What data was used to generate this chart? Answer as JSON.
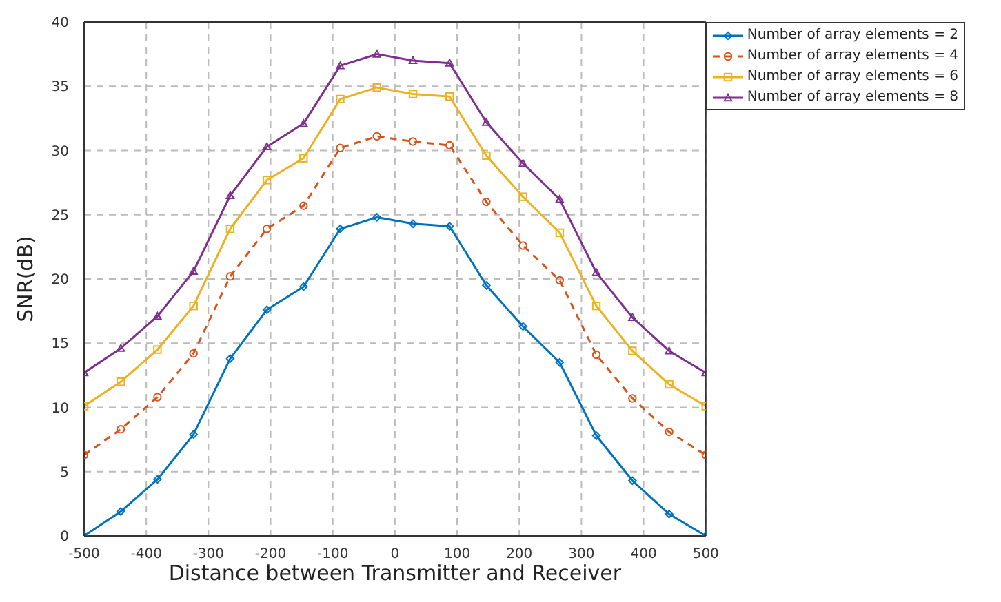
{
  "chart_data": {
    "type": "line",
    "xlabel": "Distance between Transmitter and Receiver",
    "ylabel": "SNR(dB)",
    "x": [
      -500,
      -441,
      -382,
      -324,
      -265,
      -206,
      -147,
      -88,
      -29,
      29,
      88,
      147,
      206,
      265,
      324,
      382,
      441,
      500
    ],
    "xlim": [
      -500,
      500
    ],
    "xticks": [
      -500,
      -400,
      -300,
      -200,
      -100,
      0,
      100,
      200,
      300,
      400,
      500
    ],
    "ylim": [
      0,
      40
    ],
    "yticks": [
      0,
      5,
      10,
      15,
      20,
      25,
      30,
      35,
      40
    ],
    "grid": true,
    "legend": "top right",
    "series": [
      {
        "name": "Number of array elements = 2",
        "color": "#0072bd",
        "marker": "diamond",
        "line_style": "solid",
        "values": [
          0,
          1.9,
          4.4,
          7.9,
          13.8,
          17.6,
          19.4,
          23.9,
          24.8,
          24.3,
          24.1,
          19.5,
          16.3,
          13.5,
          7.8,
          4.3,
          1.7,
          0
        ]
      },
      {
        "name": "Number of array elements = 4",
        "color": "#d95319",
        "marker": "circle",
        "line_style": "dashed",
        "values": [
          6.3,
          8.3,
          10.8,
          14.2,
          20.2,
          23.9,
          25.7,
          30.2,
          31.1,
          30.7,
          30.4,
          26.0,
          22.6,
          19.9,
          14.1,
          10.7,
          8.1,
          6.3
        ]
      },
      {
        "name": "Number of array elements = 6",
        "color": "#edb120",
        "marker": "square",
        "line_style": "solid",
        "values": [
          10.1,
          12.0,
          14.5,
          17.9,
          23.9,
          27.7,
          29.4,
          34.0,
          34.9,
          34.4,
          34.2,
          29.6,
          26.4,
          23.6,
          17.9,
          14.4,
          11.8,
          10.1
        ]
      },
      {
        "name": "Number of array elements = 8",
        "color": "#7e2f8e",
        "marker": "triangle",
        "line_style": "solid",
        "values": [
          12.7,
          14.6,
          17.1,
          20.6,
          26.5,
          30.3,
          32.1,
          36.6,
          37.5,
          37.0,
          36.8,
          32.2,
          29.0,
          26.2,
          20.5,
          17.0,
          14.4,
          12.7
        ]
      }
    ]
  }
}
